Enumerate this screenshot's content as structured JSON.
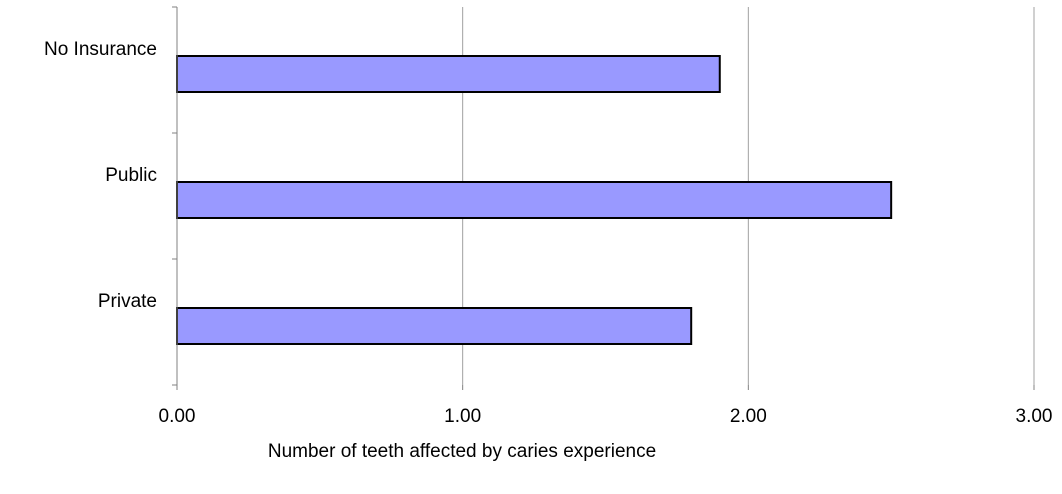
{
  "chart_data": {
    "type": "bar",
    "orientation": "horizontal",
    "categories": [
      "No Insurance",
      "Public",
      "Private"
    ],
    "values": [
      1.9,
      2.5,
      1.8
    ],
    "xlabel": "Number of teeth affected by caries experience",
    "ylabel": "",
    "xlim": [
      0,
      3
    ],
    "x_ticks": [
      "0.00",
      "1.00",
      "2.00",
      "3.00"
    ],
    "grid": "vertical",
    "legend": "none",
    "colors": {
      "bar_fill": "#9999ff",
      "bar_stroke": "#000000",
      "grid": "#a0a0a0",
      "axis": "#808080"
    }
  }
}
